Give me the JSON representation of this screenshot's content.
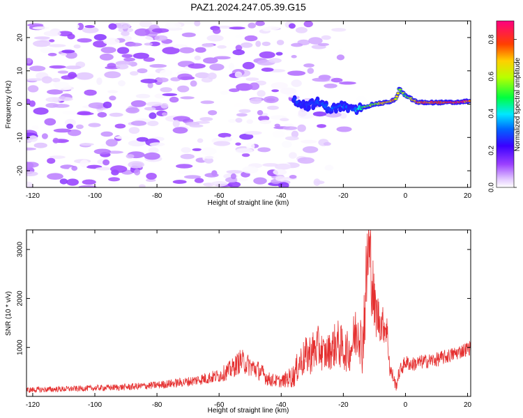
{
  "title": "PAZ1.2024.247.05.39.G15",
  "chart_data": [
    {
      "type": "heatmap",
      "xlabel": "Height of straight line (km)",
      "ylabel": "Frequency (Hz)",
      "xlim": [
        -122,
        21
      ],
      "ylim": [
        -25,
        25
      ],
      "xticks": [
        -120,
        -100,
        -80,
        -60,
        -40,
        -20,
        0,
        20
      ],
      "xtick_labels": [
        "-120",
        "-100",
        "-80",
        "-60",
        "-40",
        "-20",
        "0",
        "20"
      ],
      "yticks": [
        -20,
        -10,
        0,
        10,
        20
      ],
      "ytick_labels": [
        "-20",
        "-10",
        "0",
        "10",
        "20"
      ],
      "colorbar": {
        "label": "Normalized spectral amplitude",
        "range": [
          0,
          0.9
        ],
        "ticks": [
          0,
          0.2,
          0.4,
          0.6,
          0.8
        ],
        "tick_labels": [
          "0.0",
          "0.2",
          "0.4",
          "0.6",
          "0.8"
        ],
        "colormap": "rainbow (white-violet-blue-cyan-green-yellow-orange-red-magenta)"
      },
      "noise_region": {
        "x_range": [
          -122,
          -14
        ],
        "amplitude": [
          0.0,
          0.15
        ]
      },
      "ridge": {
        "x": [
          -36,
          -32,
          -28,
          -24,
          -20,
          -17,
          -14,
          -10,
          -6,
          -3,
          -2,
          0,
          4,
          8,
          12,
          16,
          21
        ],
        "frequency": [
          1.5,
          -0.5,
          0.5,
          -1.5,
          -0.5,
          -2.0,
          -1.0,
          0.0,
          0.5,
          1.5,
          4.5,
          2.5,
          0.5,
          0.5,
          0.5,
          0.5,
          1.0
        ],
        "amplitude": [
          0.3,
          0.28,
          0.3,
          0.32,
          0.3,
          0.32,
          0.55,
          0.6,
          0.78,
          0.7,
          0.6,
          0.55,
          0.85,
          0.88,
          0.85,
          0.9,
          0.85
        ]
      }
    },
    {
      "type": "line",
      "xlabel": "Height of straight line (km)",
      "ylabel": "SNR (10 * v/v)",
      "xlim": [
        -122,
        21
      ],
      "ylim": [
        0,
        3400
      ],
      "xticks": [
        -120,
        -100,
        -80,
        -60,
        -40,
        -20,
        0,
        20
      ],
      "xtick_labels": [
        "-120",
        "-100",
        "-80",
        "-60",
        "-40",
        "-20",
        "0",
        "20"
      ],
      "yticks": [
        1000,
        2000,
        3000
      ],
      "ytick_labels": [
        "1000",
        "2000",
        "3000"
      ],
      "color": "#e53030",
      "series": [
        {
          "x": [
            -122,
            -110,
            -100,
            -90,
            -80,
            -70,
            -65,
            -60,
            -56,
            -53,
            -50,
            -47,
            -44,
            -40,
            -36,
            -34,
            -32,
            -30,
            -28,
            -26,
            -24,
            -22,
            -20,
            -18,
            -16,
            -15,
            -14,
            -13,
            -12,
            -11,
            -10,
            -8,
            -6,
            -5,
            -4,
            -3,
            -2,
            0,
            2,
            5,
            10,
            15,
            21
          ],
          "y": [
            130,
            150,
            170,
            190,
            230,
            300,
            360,
            420,
            560,
            730,
            620,
            520,
            350,
            300,
            420,
            700,
            820,
            900,
            1000,
            850,
            950,
            1100,
            950,
            900,
            1300,
            1500,
            900,
            1900,
            3000,
            2600,
            1800,
            1500,
            1400,
            550,
            400,
            200,
            500,
            700,
            650,
            700,
            750,
            850,
            1000
          ],
          "spread": [
            60,
            60,
            60,
            70,
            80,
            100,
            120,
            140,
            200,
            250,
            220,
            200,
            150,
            120,
            250,
            350,
            400,
            450,
            450,
            350,
            400,
            500,
            450,
            400,
            600,
            700,
            500,
            900,
            1100,
            900,
            600,
            400,
            350,
            200,
            150,
            100,
            150,
            150,
            150,
            150,
            150,
            150,
            150
          ]
        }
      ]
    }
  ]
}
